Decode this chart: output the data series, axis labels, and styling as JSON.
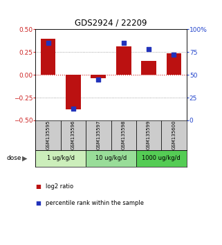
{
  "title": "GDS2924 / 22209",
  "samples": [
    "GSM135595",
    "GSM135596",
    "GSM135597",
    "GSM135598",
    "GSM135599",
    "GSM135600"
  ],
  "log2_ratios": [
    0.4,
    -0.38,
    -0.04,
    0.31,
    0.15,
    0.24
  ],
  "percentile_ranks": [
    85,
    13,
    45,
    85,
    78,
    72
  ],
  "dose_groups": [
    {
      "label": "1 ug/kg/d",
      "samples": [
        0,
        1
      ],
      "color": "#cceebb"
    },
    {
      "label": "10 ug/kg/d",
      "samples": [
        2,
        3
      ],
      "color": "#99dd99"
    },
    {
      "label": "1000 ug/kg/d",
      "samples": [
        4,
        5
      ],
      "color": "#55cc55"
    }
  ],
  "bar_color": "#bb1111",
  "dot_color": "#2233bb",
  "left_axis_color": "#cc2222",
  "right_axis_color": "#2244cc",
  "ylim_left": [
    -0.5,
    0.5
  ],
  "ylim_right": [
    0,
    100
  ],
  "yticks_left": [
    -0.5,
    -0.25,
    0,
    0.25,
    0.5
  ],
  "yticks_right": [
    0,
    25,
    50,
    75,
    100
  ],
  "hlines": [
    -0.25,
    0.25
  ],
  "zero_line_color": "#cc2222",
  "dotted_line_color": "#888888",
  "sample_box_color": "#cccccc",
  "bar_width": 0.6,
  "fig_width": 3.21,
  "fig_height": 3.54
}
